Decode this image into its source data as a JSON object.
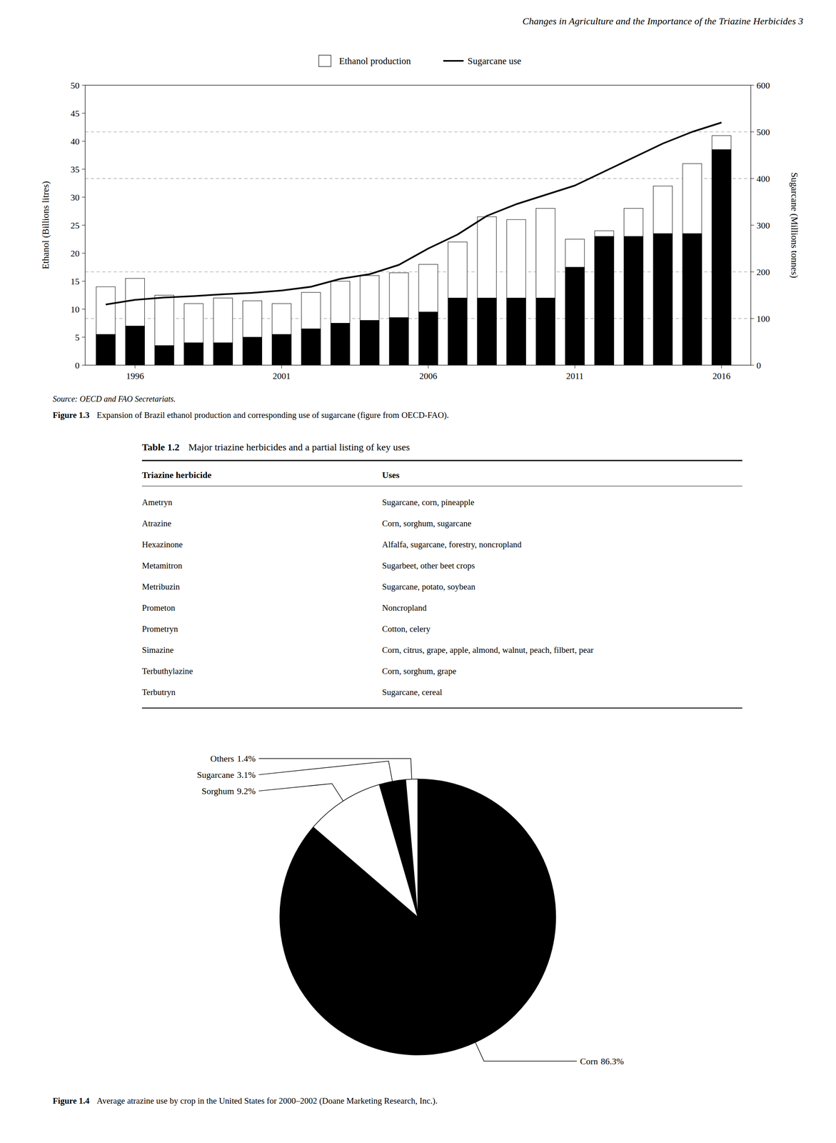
{
  "title": "Changes in Agriculture and the Importance of the Triazine Herbicides   3",
  "chart_data": [
    {
      "type": "bar",
      "title": "Figure 1.3",
      "caption": "Expansion of Brazil ethanol production and corresponding use of sugarcane (figure from OECD-FAO).",
      "source": "Source: OECD and FAO Secretariats.",
      "ylabel": "Ethanol (Billions litres)",
      "y2label": "Sugarcane (Millions tonnes)",
      "x": [
        1995,
        1996,
        1997,
        1998,
        1999,
        2000,
        2001,
        2002,
        2003,
        2004,
        2005,
        2006,
        2007,
        2008,
        2009,
        2010,
        2011,
        2012,
        2013,
        2014,
        2015,
        2016
      ],
      "xlim": [
        1994.3,
        2017.0
      ],
      "xticks": [
        1996,
        2001,
        2006,
        2011,
        2016
      ],
      "ylim": [
        0,
        50
      ],
      "yticks": [
        0,
        5,
        10,
        15,
        20,
        25,
        30,
        35,
        40,
        45,
        50
      ],
      "y2lim": [
        0,
        600
      ],
      "y2ticks": [
        0,
        100,
        200,
        300,
        400,
        500,
        600
      ],
      "y2_reference_lines": [
        100,
        200,
        400,
        500
      ],
      "stacked": false,
      "legend": "top",
      "series": [
        {
          "name": "Ethanol production",
          "type": "bar",
          "color": "#ffffff",
          "values": [
            14.0,
            15.5,
            12.5,
            11.0,
            12.0,
            11.5,
            11.0,
            13.0,
            15.0,
            16.0,
            16.5,
            18.0,
            22.0,
            26.5,
            26.0,
            28.0,
            22.5,
            24.0,
            28.0,
            32.0,
            36.0,
            41.0
          ]
        },
        {
          "type": "bar",
          "color": "#000000",
          "values": [
            5.5,
            7.0,
            3.5,
            4.0,
            4.0,
            5.0,
            5.5,
            6.5,
            7.5,
            8.0,
            8.5,
            9.5,
            12.0,
            12.0,
            12.0,
            12.0,
            17.5,
            23.0,
            23.0,
            23.5,
            23.5,
            38.5
          ]
        },
        {
          "name": "Sugarcane use",
          "type": "line",
          "axis": "y2",
          "color": "#000000",
          "values": [
            130,
            140,
            145,
            148,
            152,
            155,
            160,
            168,
            185,
            195,
            215,
            250,
            280,
            320,
            345,
            365,
            385,
            415,
            445,
            475,
            500,
            520
          ]
        }
      ]
    },
    {
      "type": "table",
      "title": "Table 1.2",
      "subtitle": "Major triazine herbicides and a partial listing of key uses",
      "columns": [
        "Triazine herbicide",
        "Uses"
      ],
      "rows": [
        [
          "Ametryn",
          "Sugarcane, corn, pineapple"
        ],
        [
          "Atrazine",
          "Corn, sorghum, sugarcane"
        ],
        [
          "Hexazinone",
          "Alfalfa, sugarcane, forestry, noncropland"
        ],
        [
          "Metamitron",
          "Sugarbeet, other beet crops"
        ],
        [
          "Metribuzin",
          "Sugarcane, potato, soybean"
        ],
        [
          "Prometon",
          "Noncropland"
        ],
        [
          "Prometryn",
          "Cotton, celery"
        ],
        [
          "Simazine",
          "Corn, citrus, grape, apple, almond, walnut, peach, filbert, pear"
        ],
        [
          "Terbuthylazine",
          "Corn, sorghum, grape"
        ],
        [
          "Terbutryn",
          "Sugarcane, cereal"
        ]
      ]
    },
    {
      "type": "pie",
      "title": "Figure 1.4",
      "caption": "Average atrazine use by crop in the United States for 2000–2002 (Doane Marketing Research, Inc.).",
      "categories": [
        "Corn",
        "Sorghum",
        "Sugarcane",
        "Others"
      ],
      "values": [
        86.3,
        9.2,
        3.1,
        1.4
      ],
      "value_labels": [
        "86.3%",
        "9.2%",
        "3.1%",
        "1.4%"
      ],
      "colors": [
        "#000000",
        "#ffffff",
        "#000000",
        "#ffffff"
      ],
      "data_labels": true
    }
  ]
}
